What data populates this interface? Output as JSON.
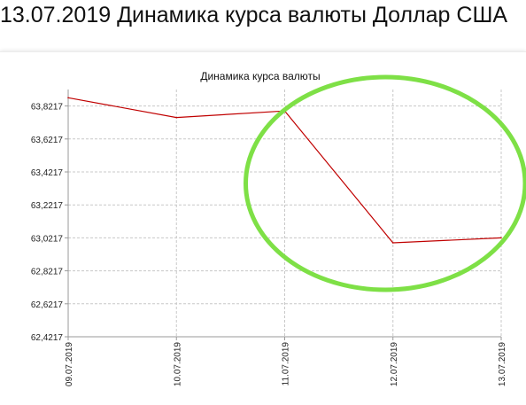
{
  "page": {
    "heading": "13.07.2019 Динамика курса валюты Доллар США"
  },
  "colors": {
    "line": "#c00000",
    "highlight": "#7ee046",
    "grid": "#c8c8c8"
  },
  "chart_data": {
    "type": "line",
    "title": "Динамика курса валюты",
    "xlabel": "",
    "ylabel": "",
    "categories": [
      "09.07.2019",
      "10.07.2019",
      "11.07.2019",
      "12.07.2019",
      "13.07.2019"
    ],
    "series": [
      {
        "values": [
          63.8717,
          63.7517,
          63.7917,
          62.9917,
          63.0217
        ]
      }
    ],
    "y_ticks": [
      "62,4217",
      "62,6217",
      "62,8217",
      "63,0217",
      "63,2217",
      "63,4217",
      "63,6217",
      "63,8217"
    ],
    "ylim": [
      62.4217,
      63.9217
    ],
    "grid": true,
    "legend": "none",
    "annotation": {
      "shape": "ellipse",
      "color": "#7ee046",
      "covers_categories": [
        "11.07.2019",
        "13.07.2019"
      ]
    }
  }
}
